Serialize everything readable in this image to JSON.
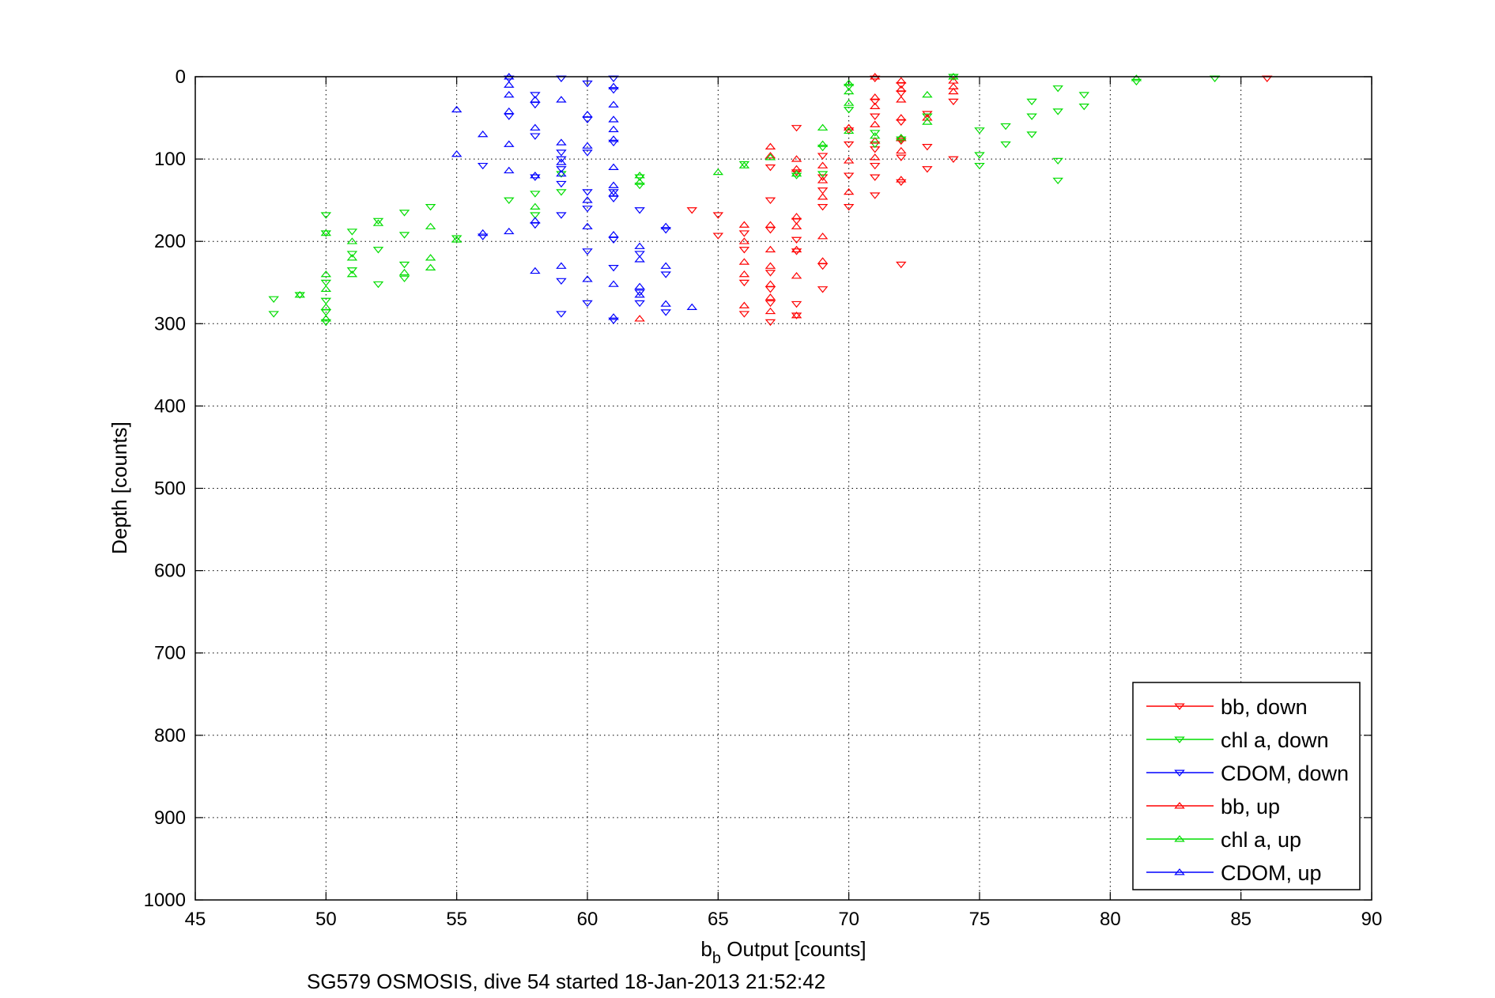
{
  "chart_data": {
    "type": "scatter",
    "xlabel_main": "b",
    "xlabel_sub": "b",
    "xlabel_rest": " Output [counts]",
    "ylabel": "Depth [counts]",
    "caption": "SG579 OSMOSIS, dive 54 started 18-Jan-2013 21:52:42",
    "xlim": [
      45,
      90
    ],
    "ylim": [
      0,
      1000
    ],
    "y_reversed": true,
    "grid": true,
    "legend_position": "bottom-right",
    "xticks": [
      "45",
      "50",
      "55",
      "60",
      "65",
      "70",
      "75",
      "80",
      "85",
      "90"
    ],
    "yticks": [
      "0",
      "100",
      "200",
      "300",
      "400",
      "500",
      "600",
      "700",
      "800",
      "900",
      "1000"
    ],
    "series": [
      {
        "name": "bb, down",
        "color": "#ff0000",
        "marker": "triangle-down",
        "points": [
          [
            86,
            2
          ],
          [
            74,
            30
          ],
          [
            74,
            100
          ],
          [
            73,
            45
          ],
          [
            73,
            85
          ],
          [
            73,
            112
          ],
          [
            72,
            10
          ],
          [
            72,
            20
          ],
          [
            72,
            55
          ],
          [
            72,
            78
          ],
          [
            72,
            98
          ],
          [
            72,
            128
          ],
          [
            72,
            228
          ],
          [
            71,
            2
          ],
          [
            71,
            30
          ],
          [
            71,
            48
          ],
          [
            71,
            88
          ],
          [
            71,
            108
          ],
          [
            71,
            122
          ],
          [
            71,
            144
          ],
          [
            70,
            65
          ],
          [
            70,
            82
          ],
          [
            70,
            120
          ],
          [
            70,
            158
          ],
          [
            69,
            96
          ],
          [
            69,
            122
          ],
          [
            69,
            138
          ],
          [
            69,
            158
          ],
          [
            69,
            230
          ],
          [
            69,
            258
          ],
          [
            68,
            62
          ],
          [
            68,
            116
          ],
          [
            68,
            175
          ],
          [
            68,
            198
          ],
          [
            68,
            212
          ],
          [
            68,
            276
          ],
          [
            68,
            290
          ],
          [
            67,
            110
          ],
          [
            67,
            150
          ],
          [
            67,
            186
          ],
          [
            67,
            238
          ],
          [
            67,
            258
          ],
          [
            67,
            275
          ],
          [
            67,
            298
          ],
          [
            66,
            190
          ],
          [
            66,
            210
          ],
          [
            66,
            250
          ],
          [
            66,
            288
          ],
          [
            65,
            168
          ],
          [
            65,
            193
          ],
          [
            64,
            162
          ]
        ]
      },
      {
        "name": "chl a, down",
        "color": "#00dd00",
        "marker": "triangle-down",
        "points": [
          [
            84,
            2
          ],
          [
            81,
            6
          ],
          [
            79,
            22
          ],
          [
            79,
            36
          ],
          [
            78,
            14
          ],
          [
            78,
            42
          ],
          [
            78,
            102
          ],
          [
            78,
            126
          ],
          [
            77,
            30
          ],
          [
            77,
            48
          ],
          [
            77,
            70
          ],
          [
            76,
            60
          ],
          [
            76,
            82
          ],
          [
            75,
            65
          ],
          [
            75,
            95
          ],
          [
            75,
            108
          ],
          [
            74,
            0
          ],
          [
            73,
            48
          ],
          [
            72,
            76
          ],
          [
            71,
            68
          ],
          [
            71,
            82
          ],
          [
            70,
            12
          ],
          [
            70,
            40
          ],
          [
            69,
            86
          ],
          [
            69,
            118
          ],
          [
            68,
            120
          ],
          [
            66,
            106
          ],
          [
            62,
            122
          ],
          [
            62,
            132
          ],
          [
            59,
            118
          ],
          [
            59,
            140
          ],
          [
            58,
            142
          ],
          [
            58,
            168
          ],
          [
            57,
            150
          ],
          [
            55,
            196
          ],
          [
            54,
            158
          ],
          [
            53,
            165
          ],
          [
            53,
            192
          ],
          [
            53,
            228
          ],
          [
            53,
            245
          ],
          [
            52,
            175
          ],
          [
            52,
            210
          ],
          [
            52,
            252
          ],
          [
            51,
            188
          ],
          [
            51,
            215
          ],
          [
            51,
            235
          ],
          [
            50,
            168
          ],
          [
            50,
            190
          ],
          [
            50,
            250
          ],
          [
            50,
            272
          ],
          [
            50,
            286
          ],
          [
            50,
            298
          ],
          [
            49,
            265
          ],
          [
            48,
            270
          ],
          [
            48,
            288
          ]
        ]
      },
      {
        "name": "CDOM, down",
        "color": "#0000ff",
        "marker": "triangle-down",
        "points": [
          [
            59,
            2
          ],
          [
            60,
            8
          ],
          [
            61,
            2
          ],
          [
            61,
            16
          ],
          [
            57,
            48
          ],
          [
            58,
            22
          ],
          [
            58,
            34
          ],
          [
            58,
            72
          ],
          [
            59,
            92
          ],
          [
            59,
            100
          ],
          [
            59,
            112
          ],
          [
            59,
            130
          ],
          [
            58,
            122
          ],
          [
            58,
            180
          ],
          [
            60,
            52
          ],
          [
            60,
            92
          ],
          [
            60,
            140
          ],
          [
            60,
            160
          ],
          [
            60,
            212
          ],
          [
            61,
            80
          ],
          [
            61,
            140
          ],
          [
            61,
            148
          ],
          [
            61,
            198
          ],
          [
            61,
            232
          ],
          [
            61,
            296
          ],
          [
            62,
            162
          ],
          [
            62,
            215
          ],
          [
            62,
            262
          ],
          [
            62,
            275
          ],
          [
            63,
            186
          ],
          [
            63,
            240
          ],
          [
            63,
            286
          ],
          [
            59,
            168
          ],
          [
            59,
            248
          ],
          [
            59,
            288
          ],
          [
            57,
            2
          ],
          [
            56,
            108
          ],
          [
            56,
            194
          ],
          [
            60,
            275
          ]
        ]
      },
      {
        "name": "bb, up",
        "color": "#ff0000",
        "marker": "triangle-up",
        "points": [
          [
            74,
            5
          ],
          [
            74,
            12
          ],
          [
            74,
            18
          ],
          [
            73,
            50
          ],
          [
            72,
            5
          ],
          [
            72,
            15
          ],
          [
            72,
            28
          ],
          [
            72,
            50
          ],
          [
            72,
            75
          ],
          [
            72,
            90
          ],
          [
            72,
            125
          ],
          [
            71,
            0
          ],
          [
            71,
            25
          ],
          [
            71,
            36
          ],
          [
            71,
            58
          ],
          [
            71,
            78
          ],
          [
            71,
            98
          ],
          [
            70,
            62
          ],
          [
            70,
            102
          ],
          [
            70,
            140
          ],
          [
            69,
            108
          ],
          [
            69,
            126
          ],
          [
            69,
            146
          ],
          [
            69,
            194
          ],
          [
            69,
            224
          ],
          [
            68,
            100
          ],
          [
            68,
            112
          ],
          [
            68,
            170
          ],
          [
            68,
            182
          ],
          [
            68,
            210
          ],
          [
            68,
            242
          ],
          [
            68,
            290
          ],
          [
            67,
            85
          ],
          [
            67,
            96
          ],
          [
            67,
            180
          ],
          [
            67,
            210
          ],
          [
            67,
            230
          ],
          [
            67,
            252
          ],
          [
            67,
            268
          ],
          [
            67,
            285
          ],
          [
            66,
            180
          ],
          [
            66,
            200
          ],
          [
            66,
            225
          ],
          [
            66,
            240
          ],
          [
            66,
            278
          ],
          [
            62,
            294
          ]
        ]
      },
      {
        "name": "chl a, up",
        "color": "#00dd00",
        "marker": "triangle-up",
        "points": [
          [
            81,
            2
          ],
          [
            74,
            0
          ],
          [
            73,
            22
          ],
          [
            73,
            55
          ],
          [
            72,
            74
          ],
          [
            71,
            72
          ],
          [
            70,
            8
          ],
          [
            70,
            18
          ],
          [
            70,
            32
          ],
          [
            70,
            66
          ],
          [
            69,
            62
          ],
          [
            69,
            82
          ],
          [
            68,
            118
          ],
          [
            67,
            98
          ],
          [
            66,
            108
          ],
          [
            65,
            116
          ],
          [
            62,
            120
          ],
          [
            62,
            128
          ],
          [
            58,
            158
          ],
          [
            55,
            198
          ],
          [
            54,
            182
          ],
          [
            54,
            220
          ],
          [
            54,
            232
          ],
          [
            53,
            238
          ],
          [
            52,
            178
          ],
          [
            51,
            200
          ],
          [
            51,
            220
          ],
          [
            51,
            240
          ],
          [
            50,
            190
          ],
          [
            50,
            240
          ],
          [
            50,
            258
          ],
          [
            50,
            280
          ],
          [
            50,
            294
          ],
          [
            49,
            265
          ]
        ]
      },
      {
        "name": "CDOM, up",
        "color": "#0000ff",
        "marker": "triangle-up",
        "points": [
          [
            57,
            0
          ],
          [
            57,
            10
          ],
          [
            57,
            22
          ],
          [
            57,
            42
          ],
          [
            57,
            82
          ],
          [
            57,
            114
          ],
          [
            57,
            188
          ],
          [
            55,
            40
          ],
          [
            55,
            94
          ],
          [
            56,
            70
          ],
          [
            56,
            190
          ],
          [
            58,
            28
          ],
          [
            58,
            62
          ],
          [
            58,
            120
          ],
          [
            58,
            175
          ],
          [
            58,
            236
          ],
          [
            59,
            28
          ],
          [
            59,
            80
          ],
          [
            59,
            104
          ],
          [
            59,
            118
          ],
          [
            59,
            230
          ],
          [
            60,
            46
          ],
          [
            60,
            84
          ],
          [
            60,
            150
          ],
          [
            60,
            182
          ],
          [
            60,
            246
          ],
          [
            61,
            12
          ],
          [
            61,
            34
          ],
          [
            61,
            52
          ],
          [
            61,
            64
          ],
          [
            61,
            76
          ],
          [
            61,
            110
          ],
          [
            61,
            132
          ],
          [
            61,
            142
          ],
          [
            61,
            192
          ],
          [
            61,
            252
          ],
          [
            61,
            292
          ],
          [
            62,
            206
          ],
          [
            62,
            222
          ],
          [
            62,
            255
          ],
          [
            62,
            265
          ],
          [
            63,
            182
          ],
          [
            63,
            230
          ],
          [
            63,
            276
          ],
          [
            64,
            280
          ]
        ]
      }
    ]
  }
}
